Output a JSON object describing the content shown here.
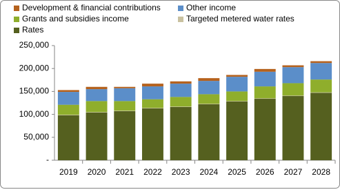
{
  "chart_data": {
    "type": "stacked-bar",
    "categories": [
      "2019",
      "2020",
      "2021",
      "2022",
      "2023",
      "2024",
      "2025",
      "2026",
      "2027",
      "2028"
    ],
    "series": [
      {
        "name": "Development & financial contributions",
        "color": "#b5621e",
        "values": [
          4000,
          5000,
          3000,
          6000,
          5000,
          6000,
          4000,
          6000,
          4000,
          4000
        ]
      },
      {
        "name": "Other income",
        "color": "#5b8ec9",
        "values": [
          28000,
          26000,
          28000,
          28000,
          29000,
          29000,
          32000,
          32000,
          35000,
          36000
        ]
      },
      {
        "name": "Grants and subsidies income",
        "color": "#8fae2c",
        "values": [
          22000,
          24000,
          21000,
          19000,
          21000,
          21000,
          21000,
          26000,
          27000,
          28000
        ]
      },
      {
        "name": "Targeted metered water rates",
        "color": "#c9c1a0",
        "values": [
          1000,
          1000,
          1000,
          1000,
          1000,
          1000,
          1000,
          1000,
          1000,
          1000
        ]
      },
      {
        "name": "Rates",
        "color": "#55601f",
        "values": [
          98000,
          104000,
          107000,
          113000,
          116000,
          122000,
          128000,
          134000,
          140000,
          147000
        ]
      }
    ],
    "ylim": [
      0,
      250000
    ],
    "yticks": [
      {
        "value": 0,
        "label": "-"
      },
      {
        "value": 50000,
        "label": "50,000"
      },
      {
        "value": 100000,
        "label": "100,000"
      },
      {
        "value": 150000,
        "label": "150,000"
      },
      {
        "value": 200000,
        "label": "200,000"
      },
      {
        "value": 250000,
        "label": "250,000"
      }
    ],
    "grid": false,
    "legend": "top-left"
  }
}
